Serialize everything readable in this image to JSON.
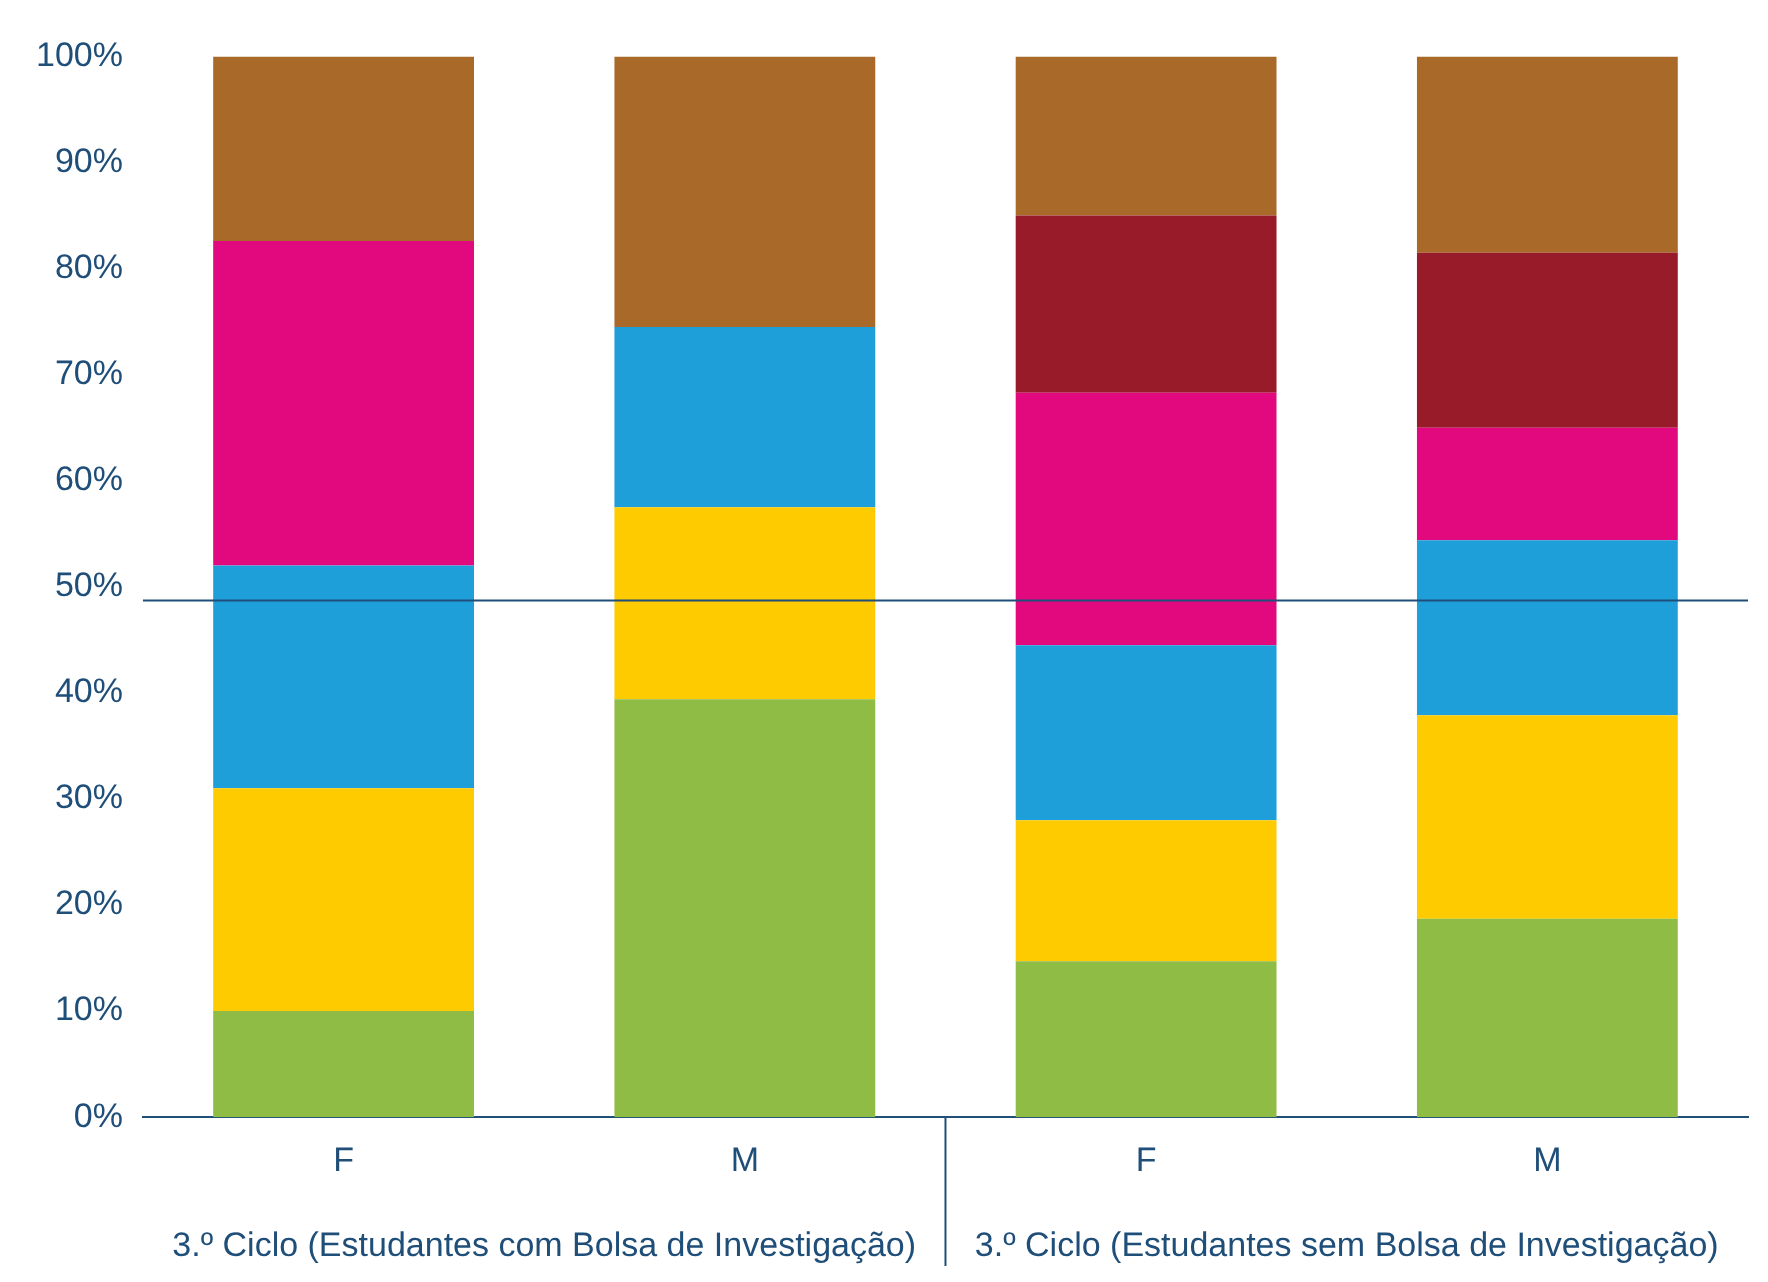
{
  "chart_data": {
    "type": "bar",
    "stacked": true,
    "categories": [
      "F",
      "M",
      "F",
      "M"
    ],
    "series": [
      {
        "color": "#8fbc45",
        "values": [
          10,
          39.4,
          14.7,
          18.7
        ]
      },
      {
        "color": "#fecb00",
        "values": [
          21,
          18.1,
          13.3,
          19.2
        ]
      },
      {
        "color": "#1f9fda",
        "values": [
          21,
          17,
          16.5,
          16.5
        ]
      },
      {
        "color": "#e2097f",
        "values": [
          30.6,
          0,
          23.8,
          10.6
        ]
      },
      {
        "color": "#981b2a",
        "values": [
          0,
          0,
          16.7,
          16.5
        ]
      },
      {
        "color": "#a96928",
        "values": [
          17.4,
          25.5,
          15,
          18.5
        ]
      }
    ],
    "ylim": [
      0,
      100
    ],
    "yticks": [
      {
        "value": 0,
        "label": "0%"
      },
      {
        "value": 10,
        "label": "10%"
      },
      {
        "value": 20,
        "label": "20%"
      },
      {
        "value": 30,
        "label": "30%"
      },
      {
        "value": 40,
        "label": "40%"
      },
      {
        "value": 50,
        "label": "50%"
      },
      {
        "value": 60,
        "label": "60%"
      },
      {
        "value": 70,
        "label": "70%"
      },
      {
        "value": 80,
        "label": "80%"
      },
      {
        "value": 90,
        "label": "90%"
      },
      {
        "value": 100,
        "label": "100%"
      }
    ],
    "ref_lines": [
      {
        "axis": "y",
        "value": 48.7,
        "color": "#1f4e79"
      }
    ],
    "annotations": [
      "3.º Ciclo (Estudantes com Bolsa de Investigação)",
      "3.º Ciclo (Estudantes sem Bolsa de Investigação)"
    ],
    "grid": false,
    "legend": false
  }
}
